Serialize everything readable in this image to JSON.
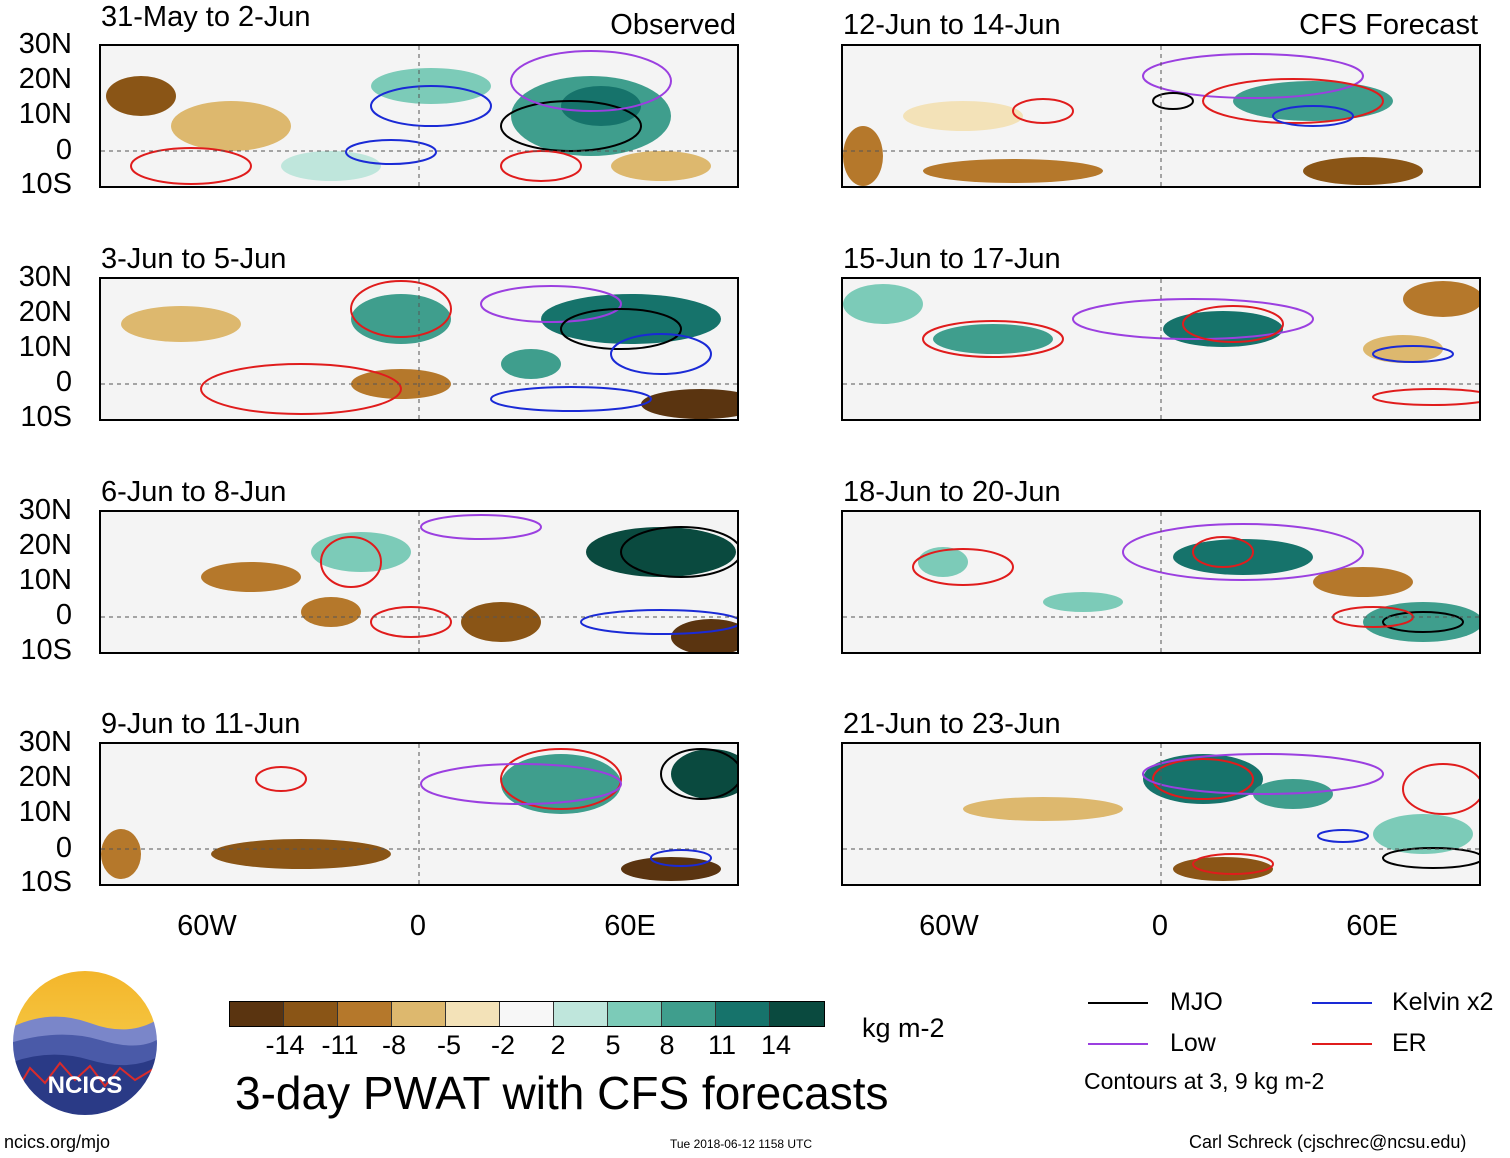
{
  "panels": {
    "p1": {
      "title": "31-May to 2-Jun",
      "corner": "Observed"
    },
    "p2": {
      "title": "3-Jun to 5-Jun"
    },
    "p3": {
      "title": "6-Jun to 8-Jun"
    },
    "p4": {
      "title": "9-Jun to 11-Jun"
    },
    "p5": {
      "title": "12-Jun to 14-Jun",
      "corner": "CFS Forecast"
    },
    "p6": {
      "title": "15-Jun to 17-Jun"
    },
    "p7": {
      "title": "18-Jun to 20-Jun"
    },
    "p8": {
      "title": "21-Jun to 23-Jun"
    }
  },
  "lat_labels": [
    "30N",
    "20N",
    "10N",
    "0",
    "10S"
  ],
  "lon_labels": [
    "60W",
    "0",
    "60E"
  ],
  "colorbar": {
    "colors": [
      "#5a3410",
      "#8a5516",
      "#b5782b",
      "#ddb86e",
      "#f3e2b8",
      "#f7f7f7",
      "#bfe6dc",
      "#7ccbb8",
      "#3f9e8d",
      "#16736b",
      "#0a4a3f"
    ],
    "ticks": [
      "-14",
      "-11",
      "-8",
      "-5",
      "-2",
      "2",
      "5",
      "8",
      "11",
      "14"
    ],
    "unit": "kg m-2"
  },
  "main_title": "3-day PWAT with CFS forecasts",
  "legend": {
    "items": [
      {
        "label": "MJO",
        "color": "#000000"
      },
      {
        "label": "Kelvin x2",
        "color": "#1a2ad6"
      },
      {
        "label": "Low",
        "color": "#9b3fe0"
      },
      {
        "label": "ER",
        "color": "#e01c1c"
      }
    ],
    "note": "Contours at 3, 9 kg m-2"
  },
  "footer": {
    "left": "ncics.org/mjo",
    "center": "Tue 2018-06-12 1158 UTC",
    "right": "Carl Schreck (cjschrec@ncsu.edu)"
  },
  "logo": {
    "text": "NCICS"
  }
}
